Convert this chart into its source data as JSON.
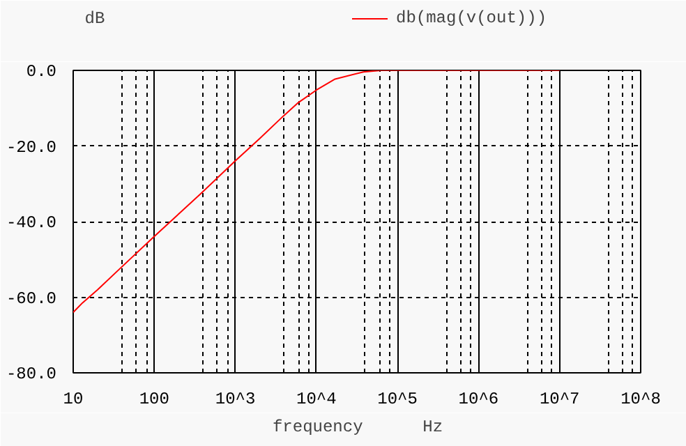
{
  "chart_data": {
    "type": "line",
    "ylabel": "dB",
    "xlabel": "frequency",
    "annotations": [
      "Hz"
    ],
    "log": "x",
    "xlim": [
      10,
      100000000
    ],
    "xticks": [
      10,
      100,
      {
        "value": 1000,
        "label": "10^3"
      },
      {
        "value": 10000,
        "label": "10^4"
      },
      {
        "value": 100000,
        "label": "10^5"
      },
      {
        "value": 1000000,
        "label": "10^6"
      },
      {
        "value": 10000000,
        "label": "10^7"
      },
      {
        "value": 100000000,
        "label": "10^8"
      }
    ],
    "ylim": [
      -80,
      0
    ],
    "yticks": [
      {
        "value": 0,
        "label": "0.0"
      },
      {
        "value": -20,
        "label": "-20.0"
      },
      {
        "value": -40,
        "label": "-40.0"
      },
      {
        "value": -60,
        "label": "-60.0"
      },
      {
        "value": -80,
        "label": "-80.0"
      }
    ],
    "grid": true,
    "legend": "top",
    "marker": "none",
    "line_style": "solid",
    "x": [
      10,
      13,
      20,
      37,
      100,
      380,
      1000,
      2000,
      3900,
      6000,
      10000,
      17000,
      38000,
      63000,
      100000,
      1000000,
      10000000
    ],
    "series": [
      {
        "name": "db(mag(v(out)))",
        "color": "#ff0000",
        "values": [
          -64,
          -61.5,
          -58,
          -52.6,
          -43.9,
          -32.5,
          -23.9,
          -18,
          -12.1,
          -8.5,
          -5.2,
          -2.3,
          -0.4,
          0,
          0,
          0,
          0
        ]
      }
    ]
  }
}
